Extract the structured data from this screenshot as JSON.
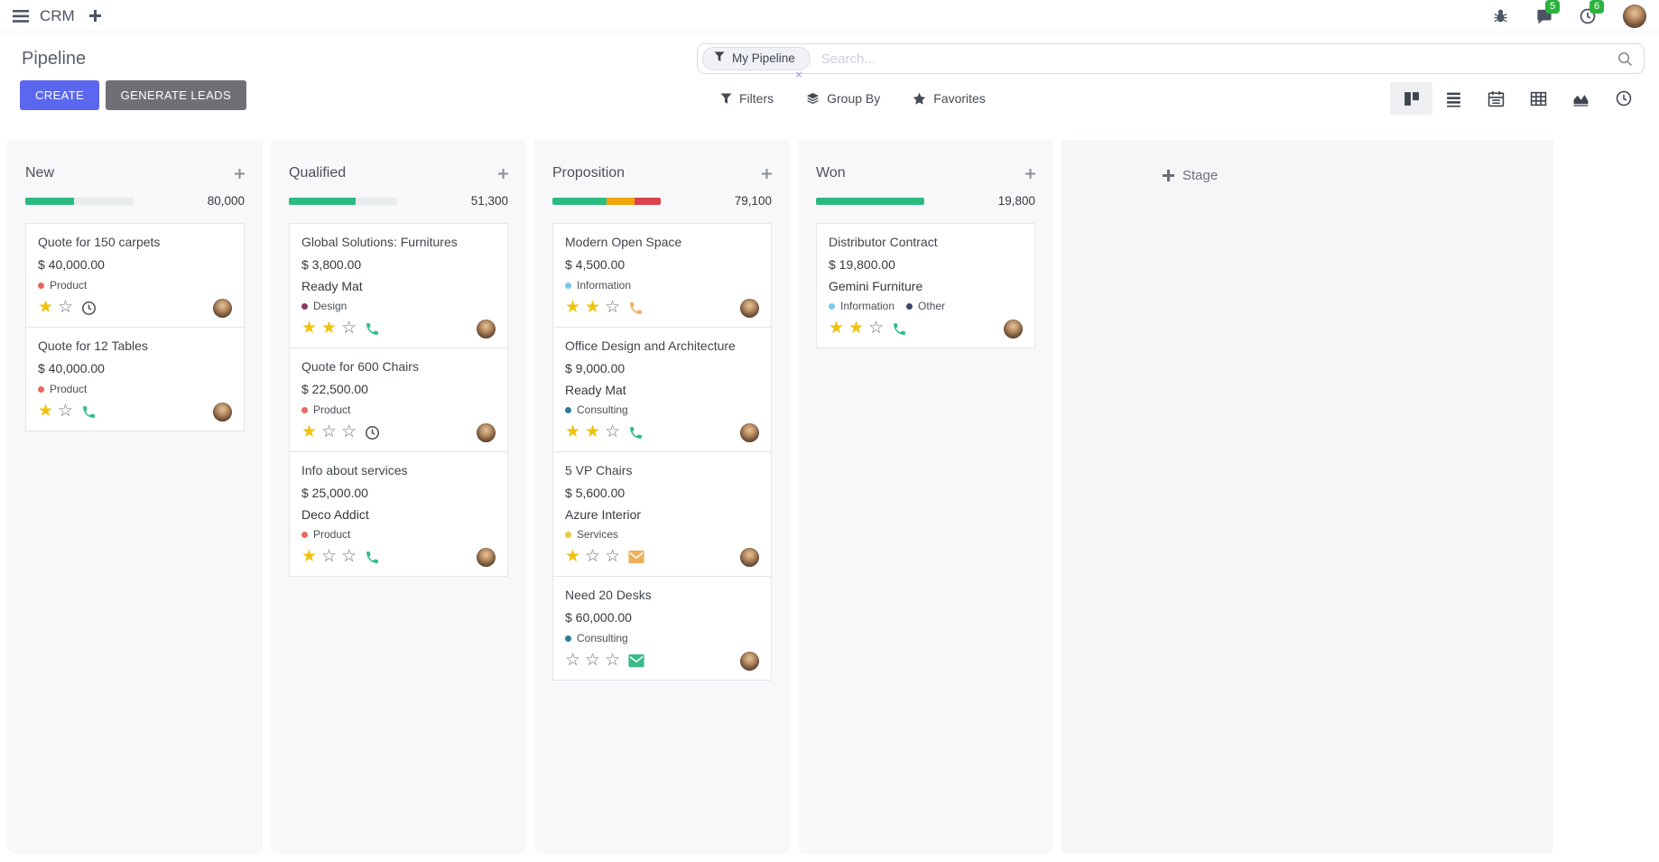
{
  "navbar": {
    "app_name": "CRM",
    "systray": {
      "messages_count": "5",
      "activities_count": "6"
    }
  },
  "control_panel": {
    "title": "Pipeline",
    "buttons": {
      "create": "CREATE",
      "generate_leads": "GENERATE LEADS"
    },
    "search": {
      "facet": "My Pipeline",
      "facet_remove": "×",
      "placeholder": "Search..."
    },
    "filter_buttons": {
      "filters": "Filters",
      "group_by": "Group By",
      "favorites": "Favorites"
    },
    "view_switcher": [
      "kanban",
      "list",
      "calendar",
      "pivot",
      "graph",
      "activity"
    ],
    "active_view": "kanban"
  },
  "colors": {
    "accent": "#5b67ef",
    "progress_green": "#2bbb80",
    "progress_orange": "#f0a50a",
    "progress_red": "#d9434e",
    "progress_track": "#e9ecef",
    "badge_green": "#2db23c"
  },
  "kanban": {
    "add_stage_label": "Stage",
    "columns": [
      {
        "name": "New",
        "total": "80,000",
        "progress": [
          {
            "name": "success",
            "color": "#2bbb80",
            "pct": 45
          },
          {
            "name": "track",
            "color": "#e9ecef",
            "pct": 55
          }
        ],
        "cards": [
          {
            "title": "Quote for 150 carpets",
            "amount": "$ 40,000.00",
            "partner": "",
            "tags": [
              {
                "label": "Product",
                "color": "#e8695f"
              }
            ],
            "stars": 2,
            "stars_filled": 1,
            "activity": {
              "icon": "clock",
              "color": "#4a5056"
            }
          },
          {
            "title": "Quote for 12 Tables",
            "amount": "$ 40,000.00",
            "partner": "",
            "tags": [
              {
                "label": "Product",
                "color": "#e8695f"
              }
            ],
            "stars": 2,
            "stars_filled": 1,
            "activity": {
              "icon": "phone",
              "color": "#2dbd8a"
            }
          }
        ]
      },
      {
        "name": "Qualified",
        "total": "51,300",
        "progress": [
          {
            "name": "success",
            "color": "#2bbb80",
            "pct": 62
          },
          {
            "name": "track",
            "color": "#e9ecef",
            "pct": 38
          }
        ],
        "cards": [
          {
            "title": "Global Solutions: Furnitures",
            "amount": "$ 3,800.00",
            "partner": "Ready Mat",
            "tags": [
              {
                "label": "Design",
                "color": "#823c64"
              }
            ],
            "stars": 3,
            "stars_filled": 2,
            "activity": {
              "icon": "phone",
              "color": "#2dbd8a"
            }
          },
          {
            "title": "Quote for 600 Chairs",
            "amount": "$ 22,500.00",
            "partner": "",
            "tags": [
              {
                "label": "Product",
                "color": "#e8695f"
              }
            ],
            "stars": 3,
            "stars_filled": 1,
            "activity": {
              "icon": "clock",
              "color": "#4a5056"
            }
          },
          {
            "title": "Info about services",
            "amount": "$ 25,000.00",
            "partner": "Deco Addict",
            "tags": [
              {
                "label": "Product",
                "color": "#e8695f"
              }
            ],
            "stars": 3,
            "stars_filled": 1,
            "activity": {
              "icon": "phone",
              "color": "#2dbd8a"
            }
          }
        ]
      },
      {
        "name": "Proposition",
        "total": "79,100",
        "progress": [
          {
            "name": "success",
            "color": "#2bbb80",
            "pct": 50
          },
          {
            "name": "warning",
            "color": "#f0a50a",
            "pct": 26
          },
          {
            "name": "danger",
            "color": "#d9434e",
            "pct": 24
          }
        ],
        "cards": [
          {
            "title": "Modern Open Space",
            "amount": "$ 4,500.00",
            "partner": "",
            "tags": [
              {
                "label": "Information",
                "color": "#79c7ee"
              }
            ],
            "stars": 3,
            "stars_filled": 2,
            "activity": {
              "icon": "phone",
              "color": "#f0ad5a"
            }
          },
          {
            "title": "Office Design and Architecture",
            "amount": "$ 9,000.00",
            "partner": "Ready Mat",
            "tags": [
              {
                "label": "Consulting",
                "color": "#2d7a9b"
              }
            ],
            "stars": 3,
            "stars_filled": 2,
            "activity": {
              "icon": "phone",
              "color": "#2dbd8a"
            }
          },
          {
            "title": "5 VP Chairs",
            "amount": "$ 5,600.00",
            "partner": "Azure Interior",
            "tags": [
              {
                "label": "Services",
                "color": "#eec63c"
              }
            ],
            "stars": 3,
            "stars_filled": 1,
            "activity": {
              "icon": "envelope",
              "color": "#eab05c"
            }
          },
          {
            "title": "Need 20 Desks",
            "amount": "$ 60,000.00",
            "partner": "",
            "tags": [
              {
                "label": "Consulting",
                "color": "#2d7a9b"
              }
            ],
            "stars": 3,
            "stars_filled": 0,
            "activity": {
              "icon": "envelope",
              "color": "#38bb86"
            }
          }
        ]
      },
      {
        "name": "Won",
        "total": "19,800",
        "progress": [
          {
            "name": "success",
            "color": "#2bbb80",
            "pct": 100
          }
        ],
        "cards": [
          {
            "title": "Distributor Contract",
            "amount": "$ 19,800.00",
            "partner": "Gemini Furniture",
            "tags": [
              {
                "label": "Information",
                "color": "#79c7ee"
              },
              {
                "label": "Other",
                "color": "#3f4566"
              }
            ],
            "stars": 3,
            "stars_filled": 2,
            "activity": {
              "icon": "phone",
              "color": "#2dbd8a"
            }
          }
        ]
      }
    ]
  }
}
